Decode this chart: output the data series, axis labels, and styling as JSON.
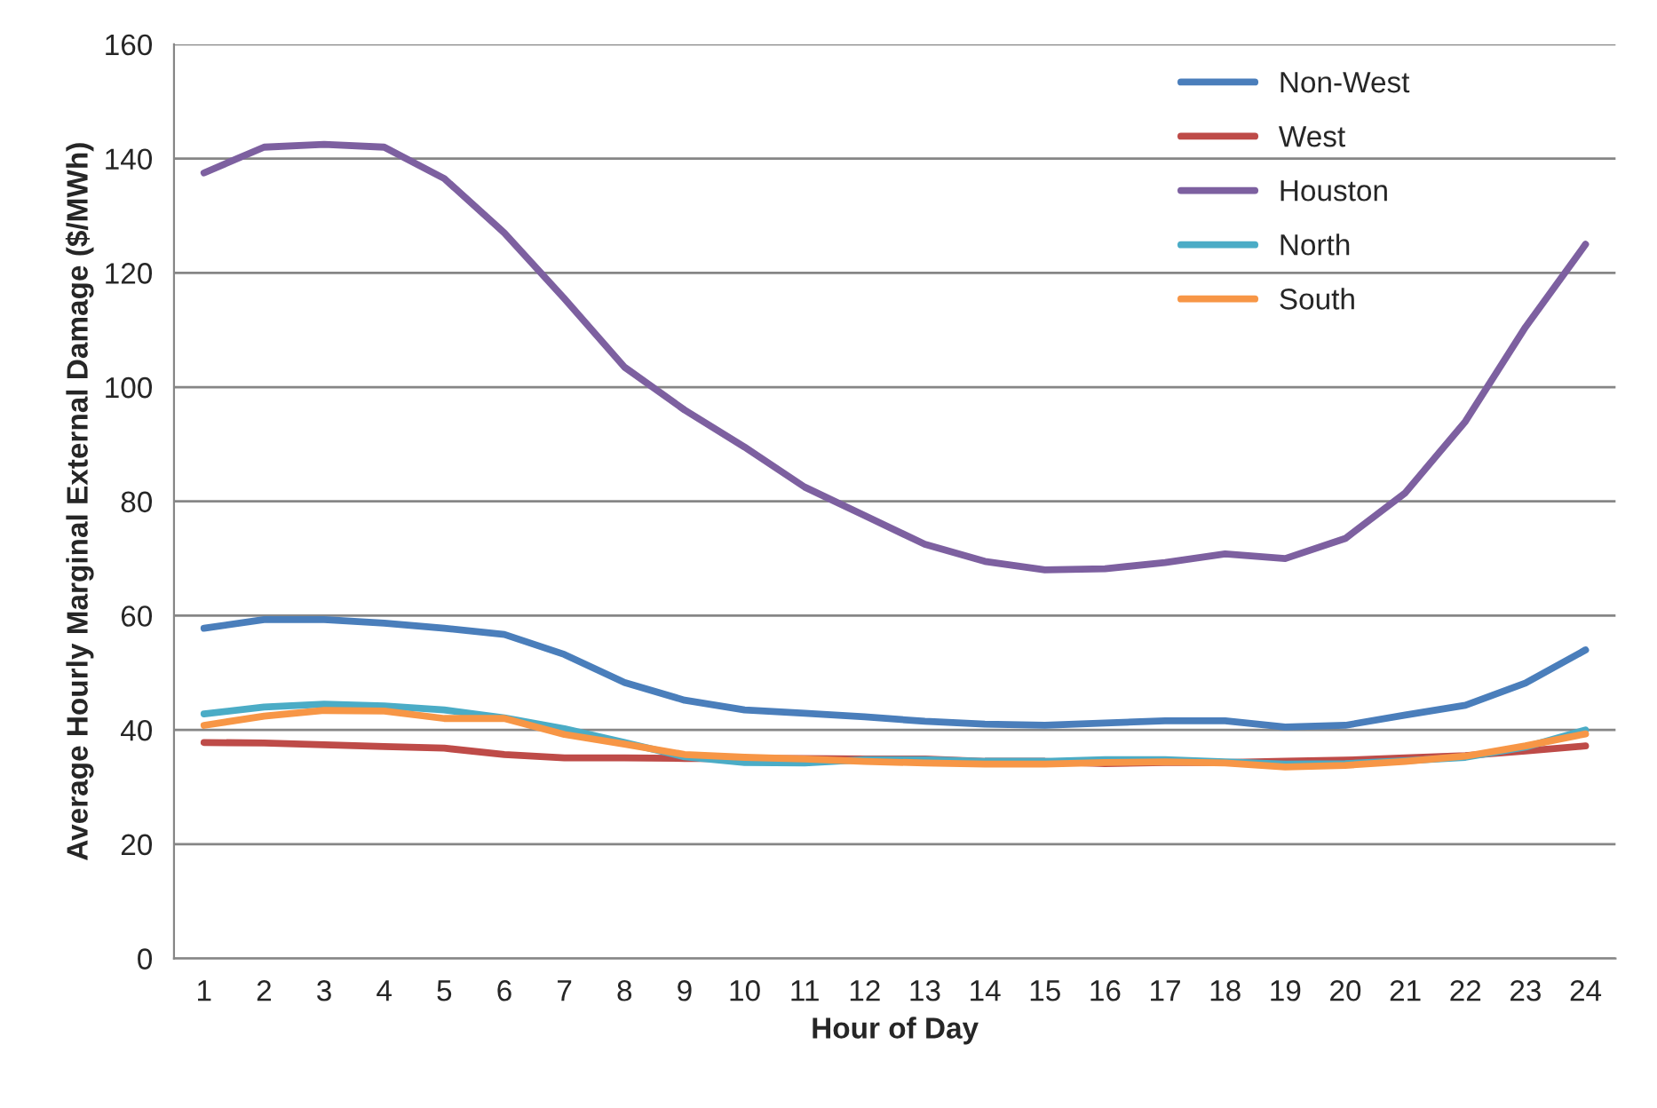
{
  "chart_data": {
    "type": "line",
    "xlabel": "Hour of Day",
    "ylabel": "Average Hourly Marginal External Damage ($/MWh)",
    "categories": [
      "1",
      "2",
      "3",
      "4",
      "5",
      "6",
      "7",
      "8",
      "9",
      "10",
      "11",
      "12",
      "13",
      "14",
      "15",
      "16",
      "17",
      "18",
      "19",
      "20",
      "21",
      "22",
      "23",
      "24"
    ],
    "series": [
      {
        "name": "Non-West",
        "color": "#4a7ebb",
        "values": [
          57.8,
          59.3,
          59.3,
          58.7,
          57.8,
          56.7,
          53.2,
          48.3,
          45.2,
          43.5,
          42.9,
          42.3,
          41.5,
          41,
          40.8,
          41.2,
          41.6,
          41.6,
          40.5,
          40.8,
          42.6,
          44.3,
          48.2,
          54
        ]
      },
      {
        "name": "West",
        "color": "#be4b48",
        "values": [
          37.8,
          37.7,
          37.4,
          37.1,
          36.8,
          35.7,
          35.1,
          35.1,
          35,
          35,
          35,
          34.9,
          34.9,
          34.5,
          34.5,
          34.1,
          34.3,
          34.3,
          34.5,
          34.7,
          35.1,
          35.5,
          36.3,
          37.2
        ]
      },
      {
        "name": "Houston",
        "color": "#7d60a0",
        "values": [
          137.5,
          142,
          142.5,
          142,
          136.5,
          127,
          115.5,
          103.5,
          96,
          89.5,
          82.5,
          77.5,
          72.5,
          69.5,
          68,
          68.2,
          69.3,
          70.8,
          70,
          73.5,
          81.5,
          94,
          110.5,
          125
        ]
      },
      {
        "name": "North",
        "color": "#4bacc6",
        "values": [
          42.8,
          44,
          44.5,
          44.2,
          43.5,
          42.1,
          40.2,
          37.8,
          35.3,
          34.3,
          34.2,
          34.8,
          34.8,
          34.5,
          34.5,
          34.8,
          34.8,
          34.4,
          34,
          34.1,
          34.6,
          35.2,
          37,
          40
        ]
      },
      {
        "name": "South",
        "color": "#f79646",
        "values": [
          40.8,
          42.4,
          43.4,
          43.3,
          42,
          42,
          39.2,
          37.5,
          35.7,
          35.2,
          34.9,
          34.5,
          34.2,
          34,
          34,
          34.3,
          34.4,
          34.2,
          33.5,
          33.8,
          34.5,
          35.4,
          37.2,
          39.3
        ]
      }
    ],
    "ylim": [
      0,
      160
    ],
    "yticks": [
      0,
      20,
      40,
      60,
      80,
      100,
      120,
      140,
      160
    ],
    "grid": "y",
    "legend": "top right",
    "marker": "none",
    "line_style": "solid"
  }
}
